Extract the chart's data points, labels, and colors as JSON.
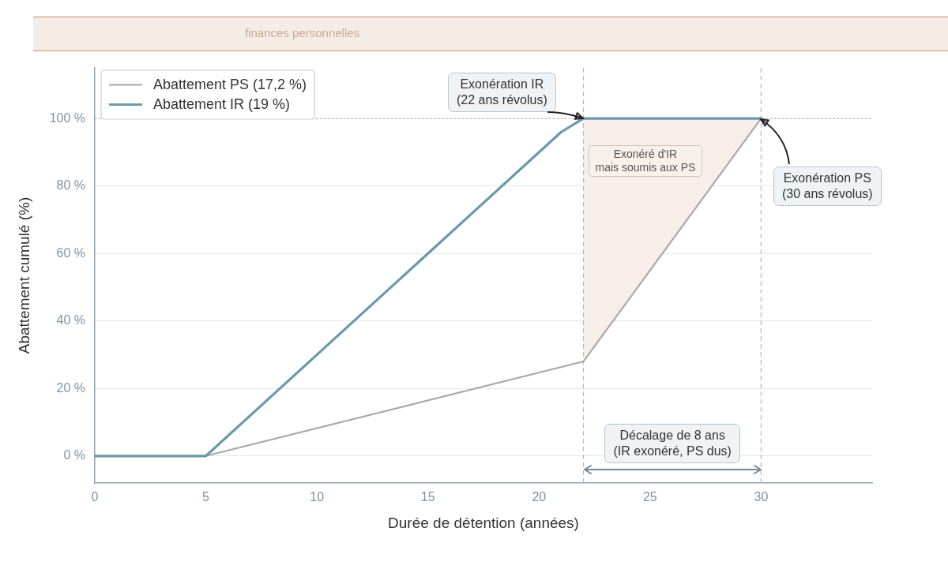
{
  "chart_data": {
    "type": "line",
    "subtitle": "finances personnelles",
    "xlabel": "Durée de détention (années)",
    "ylabel": "Abattement cumulé (%)",
    "series": [
      {
        "name": "Abattement PS (17,2 %)",
        "color": "#a9a9a9",
        "x": [
          0,
          5,
          22,
          30
        ],
        "values": [
          0,
          0,
          28,
          100
        ]
      },
      {
        "name": "Abattement IR (19 %)",
        "color": "#6a9aaa",
        "x": [
          0,
          5,
          21,
          22,
          30
        ],
        "values": [
          0,
          0,
          96,
          100,
          100
        ],
        "lower": [
          null,
          null,
          null,
          28,
          100
        ],
        "upper": [
          null,
          null,
          null,
          100,
          100
        ]
      }
    ],
    "xlim": [
      0,
      35
    ],
    "xticks": [
      0,
      5,
      10,
      15,
      20,
      25,
      30
    ],
    "ylim": [
      -8,
      115
    ],
    "yticks": [
      {
        "value": 0,
        "label": "0 %"
      },
      {
        "value": 20,
        "label": "20 %"
      },
      {
        "value": 40,
        "label": "40 %"
      },
      {
        "value": 60,
        "label": "60 %"
      },
      {
        "value": 80,
        "label": "80 %"
      },
      {
        "value": 100,
        "label": "100 %"
      }
    ],
    "grid": "y",
    "legend": "top left",
    "marker": "none",
    "ref_lines": [
      {
        "axis": "y",
        "value": 100,
        "color": "#b5b5b5",
        "line_style": "dotted"
      },
      {
        "axis": "x",
        "value": 22,
        "color": "#9fc0cc",
        "line_style": "dashed"
      },
      {
        "axis": "x",
        "value": 30,
        "color": "#bdbdbd",
        "line_style": "dashed"
      }
    ],
    "annotations": [
      {
        "text": "Exonération IR\n(22 ans révolus)",
        "x": 22,
        "y": 100
      },
      {
        "text": "Exonération PS\n(30 ans révolus)",
        "x": 30,
        "y": 100
      },
      "Exonéré d'IR\nmais soumis aux PS",
      "Décalage de 8 ans\n(IR exonéré, PS dus)"
    ]
  }
}
